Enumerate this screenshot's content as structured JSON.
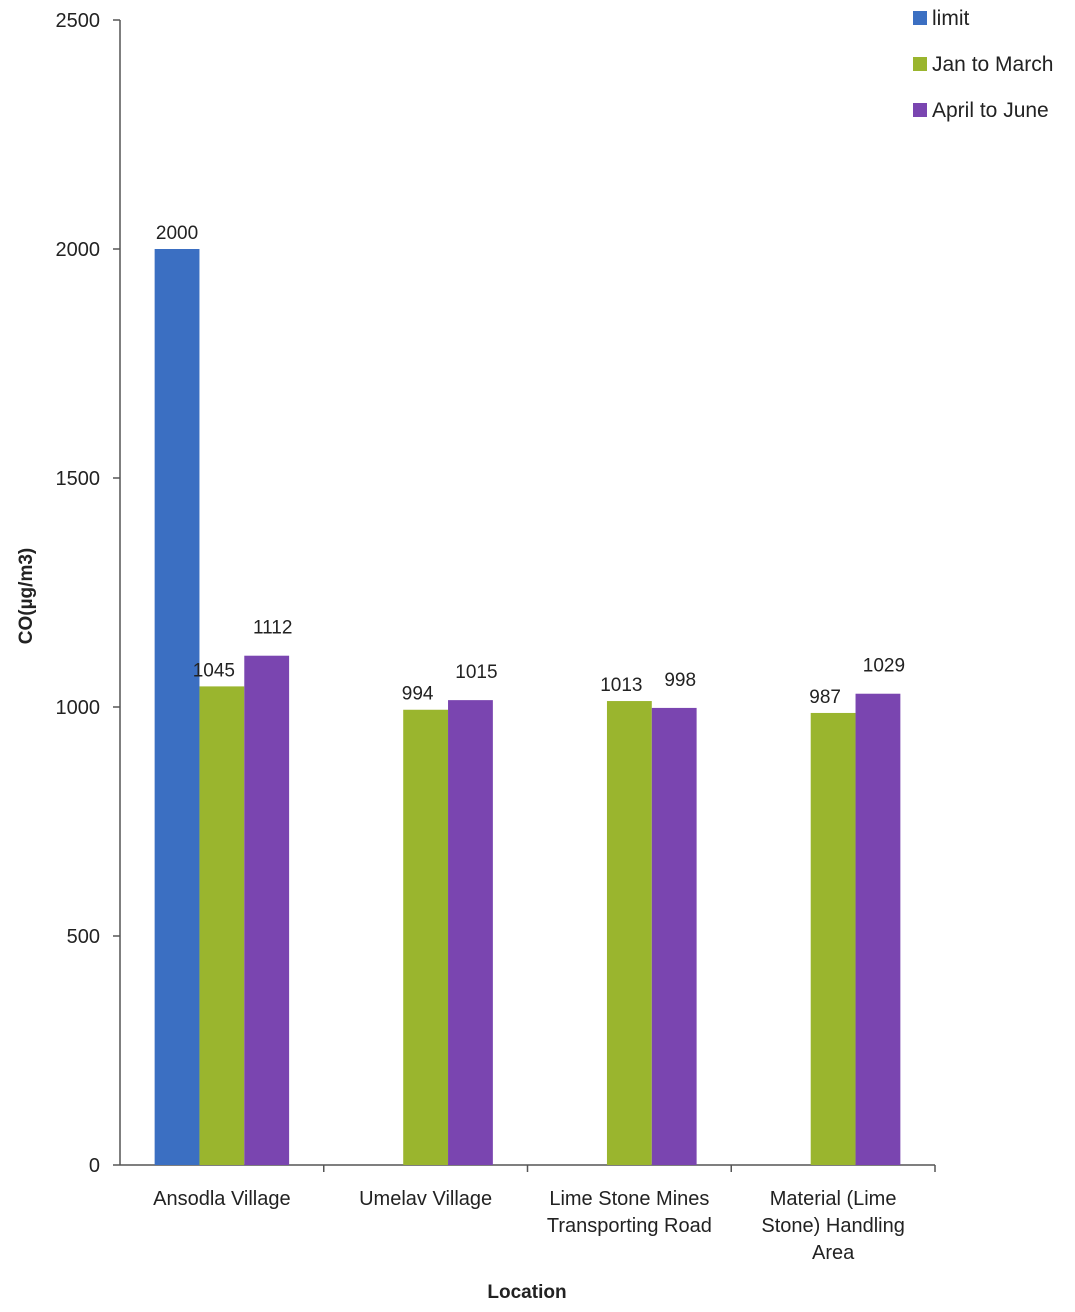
{
  "chart_data": {
    "type": "bar",
    "xlabel": "Location",
    "ylabel": "CO(µg/m3)",
    "ylim": [
      0,
      2500
    ],
    "yticks": [
      0,
      500,
      1000,
      1500,
      2000,
      2500
    ],
    "categories": [
      [
        "Ansodla Village"
      ],
      [
        "Umelav Village"
      ],
      [
        "Lime Stone Mines",
        "Transporting Road"
      ],
      [
        "Material (Lime",
        "Stone) Handling",
        "Area"
      ]
    ],
    "series": [
      {
        "name": "limit",
        "color": "#3b6fc2",
        "values": [
          2000,
          null,
          null,
          null
        ]
      },
      {
        "name": "Jan to March",
        "color": "#9ab52e",
        "values": [
          1045,
          994,
          1013,
          987
        ]
      },
      {
        "name": "April to June",
        "color": "#7a45b0",
        "values": [
          1112,
          1015,
          998,
          1029
        ]
      }
    ],
    "legend_position": "top-right",
    "grid": false
  }
}
